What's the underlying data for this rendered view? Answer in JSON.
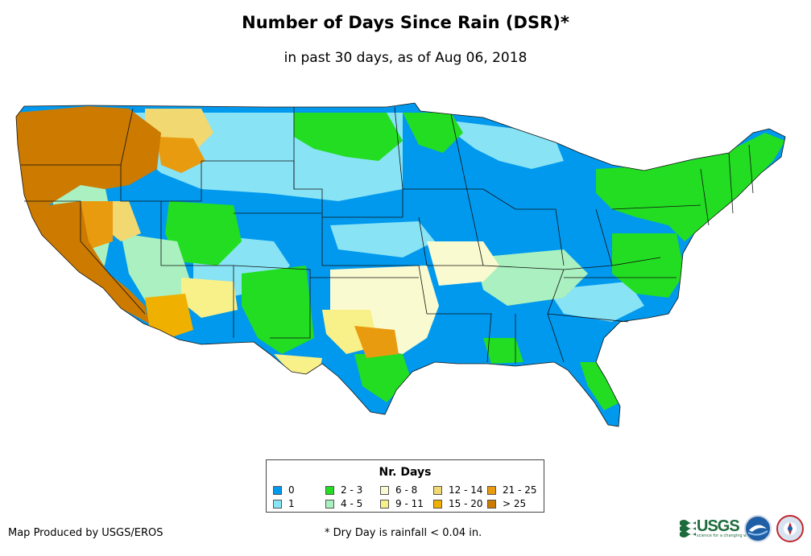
{
  "header": {
    "title": "Number of Days Since Rain (DSR)*",
    "subtitle": "in past 30 days, as of Aug 06, 2018"
  },
  "legend": {
    "title": "Nr. Days",
    "items": [
      {
        "label": "0",
        "color": "#0099ee"
      },
      {
        "label": "1",
        "color": "#88e3f5"
      },
      {
        "label": "2 - 3",
        "color": "#22dd22"
      },
      {
        "label": "4 - 5",
        "color": "#aaf0c0"
      },
      {
        "label": "6 - 8",
        "color": "#fafad0"
      },
      {
        "label": "9 - 11",
        "color": "#f8f088"
      },
      {
        "label": "12 - 14",
        "color": "#f2d870"
      },
      {
        "label": "15 - 20",
        "color": "#f0b000"
      },
      {
        "label": "21 - 25",
        "color": "#e99b10"
      },
      {
        "label": "> 25",
        "color": "#cc7a00"
      }
    ]
  },
  "footer": {
    "credit": "Map Produced by USGS/EROS",
    "footnote": "* Dry Day is rainfall < 0.04 in."
  },
  "logos": {
    "usgs": {
      "text": "USGS",
      "tagline": "science for a changing world",
      "icon": "usgs-wave-icon"
    },
    "noaa": {
      "icon": "noaa-seal-icon"
    },
    "nws": {
      "icon": "nws-seal-icon"
    }
  }
}
